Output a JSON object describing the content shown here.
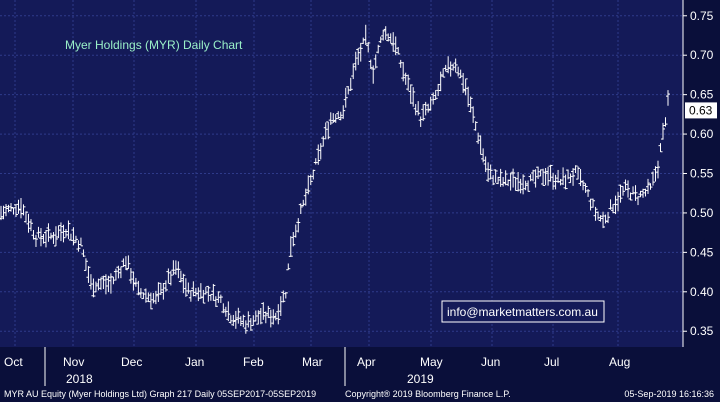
{
  "colors": {
    "background": "#0a0f3a",
    "plot_bg": "#141a58",
    "grid": "#2e3a8a",
    "bars": "#ffffff",
    "title": "#9af0c8",
    "axis_text": "#ffffff",
    "link_border": "#ffffff",
    "link_text": "#ffffff"
  },
  "chart_data": {
    "type": "bar",
    "title": "Myer Holdings (MYR) Daily Chart",
    "series_style": "ohlc",
    "ylim": [
      0.33,
      0.77
    ],
    "y_ticks": [
      "0.35",
      "0.40",
      "0.45",
      "0.50",
      "0.55",
      "0.60",
      "0.65",
      "0.70",
      "0.75"
    ],
    "x_months": [
      "Oct",
      "Nov",
      "Dec",
      "Jan",
      "Feb",
      "Mar",
      "Apr",
      "May",
      "Jun",
      "Jul",
      "Aug"
    ],
    "x_years": [
      "2018",
      "2019"
    ],
    "last_price_label": "0.63",
    "grid": true,
    "anchors": [
      [
        0,
        0.5
      ],
      [
        8,
        0.51
      ],
      [
        14,
        0.47
      ],
      [
        20,
        0.47
      ],
      [
        26,
        0.48
      ],
      [
        32,
        0.46
      ],
      [
        36,
        0.41
      ],
      [
        44,
        0.41
      ],
      [
        50,
        0.44
      ],
      [
        55,
        0.4
      ],
      [
        62,
        0.39
      ],
      [
        70,
        0.43
      ],
      [
        75,
        0.4
      ],
      [
        82,
        0.4
      ],
      [
        88,
        0.39
      ],
      [
        92,
        0.37
      ],
      [
        98,
        0.36
      ],
      [
        104,
        0.37
      ],
      [
        110,
        0.37
      ],
      [
        114,
        0.4
      ],
      [
        116,
        0.46
      ],
      [
        121,
        0.51
      ],
      [
        127,
        0.57
      ],
      [
        132,
        0.62
      ],
      [
        137,
        0.63
      ],
      [
        142,
        0.69
      ],
      [
        146,
        0.72
      ],
      [
        149,
        0.68
      ],
      [
        153,
        0.73
      ],
      [
        157,
        0.72
      ],
      [
        162,
        0.67
      ],
      [
        168,
        0.62
      ],
      [
        173,
        0.64
      ],
      [
        178,
        0.68
      ],
      [
        182,
        0.69
      ],
      [
        186,
        0.66
      ],
      [
        190,
        0.61
      ],
      [
        195,
        0.55
      ],
      [
        200,
        0.54
      ],
      [
        206,
        0.54
      ],
      [
        212,
        0.54
      ],
      [
        218,
        0.55
      ],
      [
        224,
        0.54
      ],
      [
        230,
        0.55
      ],
      [
        234,
        0.53
      ],
      [
        238,
        0.5
      ],
      [
        241,
        0.49
      ],
      [
        245,
        0.51
      ],
      [
        250,
        0.53
      ],
      [
        255,
        0.52
      ],
      [
        260,
        0.53
      ],
      [
        263,
        0.56
      ],
      [
        265,
        0.6
      ],
      [
        267,
        0.64
      ]
    ],
    "link_label": "info@marketmatters.com.au"
  },
  "footer": {
    "left": "MYR AU Equity (Myer Holdings Ltd) Graph 217  Daily 05SEP2017-05SEP2019",
    "center": "Copyright® 2019 Bloomberg Finance L.P.",
    "right": "05-Sep-2019 16:16:36"
  }
}
